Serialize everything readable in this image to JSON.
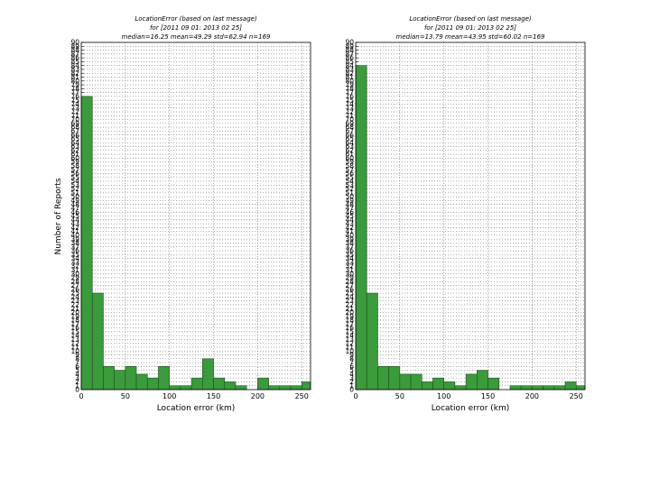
{
  "chart_data": [
    {
      "type": "bar",
      "title": [
        "LocationError (based on last message)",
        "for [2011 09 01: 2013 02 25]",
        "median=16.25 mean=49.29 std=62.94 n=169"
      ],
      "xlabel": "Location error (km)",
      "ylabel": "Number of Reports",
      "xlim": [
        0,
        260
      ],
      "ylim": [
        0,
        90
      ],
      "xticks": [
        0,
        50,
        100,
        150,
        200,
        250
      ],
      "bin_width": 12.5,
      "bin_starts": [
        0,
        12.5,
        25,
        37.5,
        50,
        62.5,
        75,
        87.5,
        100,
        112.5,
        125,
        137.5,
        150,
        162.5,
        175,
        187.5,
        200,
        212.5,
        225,
        237.5,
        250
      ],
      "values": [
        76,
        25,
        6,
        5,
        6,
        4,
        3,
        6,
        1,
        1,
        3,
        8,
        3,
        2,
        1,
        0,
        3,
        1,
        1,
        1,
        2
      ],
      "bar_color": "#3b9a3b",
      "grid": true
    },
    {
      "type": "bar",
      "title": [
        "LocationError (based on last message)",
        "for [2011 09 01: 2013 02 25]",
        "median=13.79 mean=43.95 std=60.02 n=169"
      ],
      "xlabel": "Location error (km)",
      "ylabel": "",
      "xlim": [
        0,
        260
      ],
      "ylim": [
        0,
        90
      ],
      "xticks": [
        0,
        50,
        100,
        150,
        200,
        250
      ],
      "bin_width": 12.5,
      "bin_starts": [
        0,
        12.5,
        25,
        37.5,
        50,
        62.5,
        75,
        87.5,
        100,
        112.5,
        125,
        137.5,
        150,
        162.5,
        175,
        187.5,
        200,
        212.5,
        225,
        237.5,
        250
      ],
      "values": [
        84,
        25,
        6,
        6,
        4,
        4,
        2,
        3,
        2,
        1,
        4,
        5,
        3,
        0,
        1,
        1,
        1,
        1,
        1,
        2,
        1
      ],
      "bar_color": "#3b9a3b",
      "grid": true
    }
  ]
}
